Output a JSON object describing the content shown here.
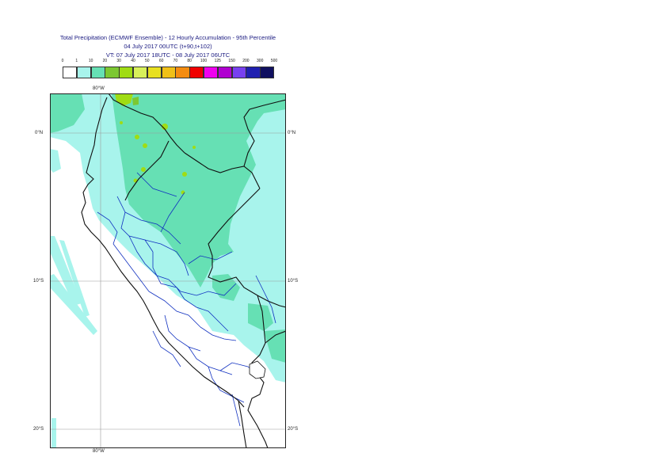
{
  "title": {
    "line1": "Total Precipitation (ECMWF Ensemble) - 12 Hourly Accumulation - 95th Percentile",
    "line2": "04 July 2017 00UTC (t+90,t+102)",
    "line3": "VT: 07 July 2017 18UTC - 08 July 2017 06UTC"
  },
  "colorbar": {
    "labels": [
      "0",
      "1",
      "10",
      "20",
      "30",
      "40",
      "50",
      "60",
      "70",
      "80",
      "100",
      "125",
      "150",
      "200",
      "300",
      "500"
    ],
    "colors": [
      "#ffffff",
      "#a8f4ec",
      "#66e0b4",
      "#7cc832",
      "#a0dc14",
      "#d8f05a",
      "#e8e020",
      "#f0c018",
      "#f48c10",
      "#f00000",
      "#f000f0",
      "#b000d0",
      "#7840f0",
      "#2020b0",
      "#101060"
    ]
  },
  "axes": {
    "lon_top": "80°W",
    "lon_bottom": "80°W",
    "lat_left": [
      "0°N",
      "10°S",
      "20°S"
    ],
    "lat_right": [
      "0°N",
      "10°S",
      "20°S"
    ]
  }
}
